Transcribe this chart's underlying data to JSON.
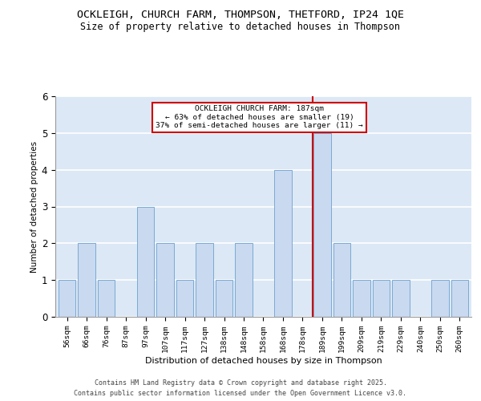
{
  "title_line1": "OCKLEIGH, CHURCH FARM, THOMPSON, THETFORD, IP24 1QE",
  "title_line2": "Size of property relative to detached houses in Thompson",
  "xlabel": "Distribution of detached houses by size in Thompson",
  "ylabel": "Number of detached properties",
  "categories": [
    "56sqm",
    "66sqm",
    "76sqm",
    "87sqm",
    "97sqm",
    "107sqm",
    "117sqm",
    "127sqm",
    "138sqm",
    "148sqm",
    "158sqm",
    "168sqm",
    "178sqm",
    "189sqm",
    "199sqm",
    "209sqm",
    "219sqm",
    "229sqm",
    "240sqm",
    "250sqm",
    "260sqm"
  ],
  "values": [
    1,
    2,
    1,
    0,
    3,
    2,
    1,
    2,
    1,
    2,
    0,
    4,
    0,
    5,
    2,
    1,
    1,
    1,
    0,
    1,
    1
  ],
  "bar_color": "#c9d9f0",
  "bar_edge_color": "#7aaad4",
  "vline_x_index": 13,
  "vline_color": "#cc0000",
  "annotation_title": "OCKLEIGH CHURCH FARM: 187sqm",
  "annotation_line2": "← 63% of detached houses are smaller (19)",
  "annotation_line3": "37% of semi-detached houses are larger (11) →",
  "annotation_box_color": "#cc0000",
  "ylim": [
    0,
    6
  ],
  "yticks": [
    0,
    1,
    2,
    3,
    4,
    5,
    6
  ],
  "background_color": "#dce8f5",
  "grid_color": "#ffffff",
  "footer_line1": "Contains HM Land Registry data © Crown copyright and database right 2025.",
  "footer_line2": "Contains public sector information licensed under the Open Government Licence v3.0."
}
